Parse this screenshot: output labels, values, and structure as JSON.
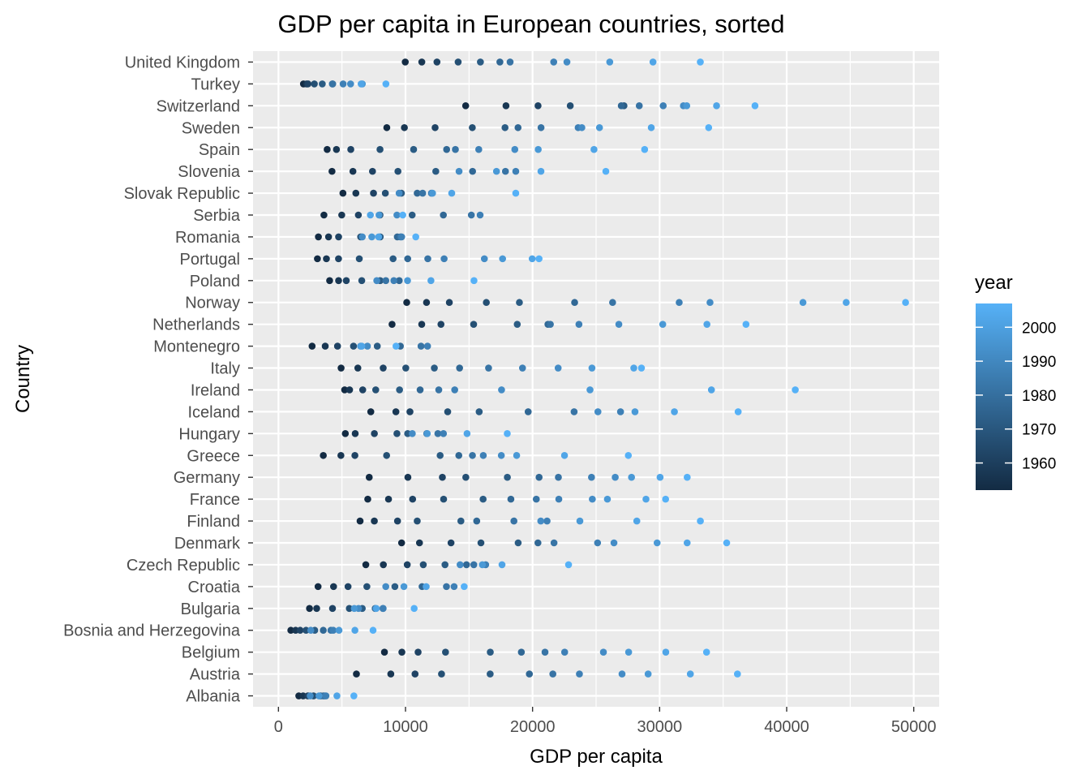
{
  "chart_data": {
    "type": "scatter",
    "title": "GDP per capita in European countries, sorted",
    "xlabel": "GDP per capita",
    "ylabel": "Country",
    "xlim": [
      -2000,
      52000
    ],
    "x_ticks": [
      0,
      10000,
      20000,
      30000,
      40000,
      50000
    ],
    "x_tick_labels": [
      "0",
      "10000",
      "20000",
      "30000",
      "40000",
      "50000"
    ],
    "grid": true,
    "legend": {
      "title": "year",
      "position": "right",
      "range": [
        1952,
        2007
      ],
      "ticks": [
        1960,
        1970,
        1980,
        1990,
        2000
      ],
      "tick_labels": [
        "1960",
        "1970",
        "1980",
        "1990",
        "2000"
      ],
      "color_low": "#132B43",
      "color_high": "#56B1F7"
    },
    "colors": {
      "panel": "#ebebeb",
      "grid": "#ffffff"
    },
    "years": [
      1952,
      1957,
      1962,
      1967,
      1972,
      1977,
      1982,
      1987,
      1992,
      1997,
      2002,
      2007
    ],
    "countries": [
      {
        "name": "Albania",
        "gdp": [
          1601,
          1942,
          2313,
          2760,
          3313,
          3533,
          3631,
          3739,
          2497,
          3193,
          4604,
          5937
        ]
      },
      {
        "name": "Austria",
        "gdp": [
          6137,
          8843,
          10751,
          12835,
          16662,
          19749,
          21597,
          23688,
          27042,
          29096,
          32418,
          36126
        ]
      },
      {
        "name": "Belgium",
        "gdp": [
          8343,
          9715,
          10991,
          13149,
          16672,
          19118,
          20980,
          22526,
          25576,
          27561,
          30486,
          33693
        ]
      },
      {
        "name": "Bosnia and Herzegovina",
        "gdp": [
          974,
          1354,
          1710,
          2172,
          2860,
          3528,
          4127,
          4314,
          2547,
          4766,
          6019,
          7446
        ]
      },
      {
        "name": "Bulgaria",
        "gdp": [
          2444,
          3009,
          4255,
          5578,
          6597,
          7613,
          8225,
          8240,
          6303,
          5970,
          7697,
          10681
        ]
      },
      {
        "name": "Croatia",
        "gdp": [
          3119,
          4338,
          5478,
          6960,
          9164,
          11305,
          13222,
          13823,
          8448,
          9876,
          11628,
          14619
        ]
      },
      {
        "name": "Czech Republic",
        "gdp": [
          6876,
          8257,
          10137,
          11399,
          13108,
          14800,
          15377,
          16310,
          14297,
          16049,
          17596,
          22833
        ]
      },
      {
        "name": "Denmark",
        "gdp": [
          9692,
          11100,
          13583,
          15937,
          18866,
          20423,
          21689,
          25116,
          26407,
          29804,
          32167,
          35278
        ]
      },
      {
        "name": "Finland",
        "gdp": [
          6425,
          7546,
          9372,
          10922,
          14359,
          15605,
          18533,
          21141,
          20647,
          23724,
          28205,
          33207
        ]
      },
      {
        "name": "France",
        "gdp": [
          7030,
          8663,
          10560,
          12999,
          16107,
          18293,
          20294,
          22066,
          24704,
          25890,
          28926,
          30470
        ]
      },
      {
        "name": "Germany",
        "gdp": [
          7144,
          10188,
          12902,
          14746,
          18016,
          20513,
          22032,
          24639,
          26505,
          27789,
          30036,
          32170
        ]
      },
      {
        "name": "Greece",
        "gdp": [
          3531,
          4916,
          6017,
          8513,
          12725,
          14196,
          15268,
          16121,
          17541,
          18748,
          22514,
          27538
        ]
      },
      {
        "name": "Hungary",
        "gdp": [
          5264,
          6040,
          7550,
          9326,
          10168,
          11675,
          12546,
          12986,
          10536,
          11712,
          14844,
          18009
        ]
      },
      {
        "name": "Iceland",
        "gdp": [
          7268,
          9244,
          10350,
          13320,
          15798,
          19655,
          23270,
          26923,
          25144,
          28061,
          31163,
          36181
        ]
      },
      {
        "name": "Ireland",
        "gdp": [
          5211,
          5599,
          6632,
          7656,
          9531,
          11151,
          12618,
          13873,
          17559,
          24522,
          34077,
          40676
        ]
      },
      {
        "name": "Italy",
        "gdp": [
          4931,
          6249,
          8244,
          10022,
          12269,
          14256,
          16537,
          19208,
          22014,
          24675,
          27968,
          28570
        ]
      },
      {
        "name": "Montenegro",
        "gdp": [
          2648,
          3682,
          4649,
          5907,
          7778,
          9596,
          11222,
          11733,
          7003,
          6466,
          6558,
          9254
        ]
      },
      {
        "name": "Netherlands",
        "gdp": [
          8942,
          11277,
          12791,
          15363,
          18795,
          21210,
          21400,
          23651,
          26791,
          30246,
          33725,
          36798
        ]
      },
      {
        "name": "Norway",
        "gdp": [
          10095,
          11654,
          13450,
          16362,
          18965,
          23311,
          26299,
          31541,
          33966,
          41283,
          44684,
          49357
        ]
      },
      {
        "name": "Poland",
        "gdp": [
          4029,
          4734,
          5339,
          6557,
          8006,
          9508,
          8452,
          9082,
          7739,
          10160,
          12002,
          15390
        ]
      },
      {
        "name": "Portugal",
        "gdp": [
          3068,
          3775,
          4728,
          6362,
          9022,
          10172,
          11754,
          13039,
          16207,
          17641,
          19971,
          20510
        ]
      },
      {
        "name": "Romania",
        "gdp": [
          3145,
          3944,
          4734,
          6471,
          8011,
          9356,
          9605,
          9696,
          6598,
          7346,
          7886,
          10809
        ]
      },
      {
        "name": "Serbia",
        "gdp": [
          3581,
          4981,
          6290,
          7991,
          10523,
          12980,
          15181,
          15871,
          9325,
          7915,
          7236,
          9786
        ]
      },
      {
        "name": "Slovak Republic",
        "gdp": [
          5075,
          6093,
          7481,
          8412,
          9674,
          10923,
          11348,
          12037,
          9498,
          12126,
          13638,
          18678
        ]
      },
      {
        "name": "Slovenia",
        "gdp": [
          4215,
          5862,
          7402,
          9405,
          12383,
          15277,
          17866,
          18679,
          14215,
          17161,
          20660,
          25768
        ]
      },
      {
        "name": "Spain",
        "gdp": [
          3835,
          4565,
          5694,
          7994,
          10639,
          13237,
          13926,
          15765,
          18603,
          20445,
          24835,
          28821
        ]
      },
      {
        "name": "Sweden",
        "gdp": [
          8528,
          9912,
          12329,
          15258,
          17832,
          18856,
          20667,
          23587,
          23880,
          25267,
          29342,
          33860
        ]
      },
      {
        "name": "Switzerland",
        "gdp": [
          14734,
          17909,
          20431,
          22966,
          27195,
          26982,
          28398,
          30282,
          31872,
          32135,
          34481,
          37506
        ]
      },
      {
        "name": "Turkey",
        "gdp": [
          1969,
          2219,
          2323,
          2826,
          3450,
          4269,
          4241,
          5089,
          5678,
          6601,
          6508,
          8458
        ]
      },
      {
        "name": "United Kingdom",
        "gdp": [
          9980,
          11283,
          12477,
          14143,
          15895,
          17429,
          18232,
          21665,
          22705,
          26075,
          29479,
          33203
        ]
      }
    ]
  }
}
